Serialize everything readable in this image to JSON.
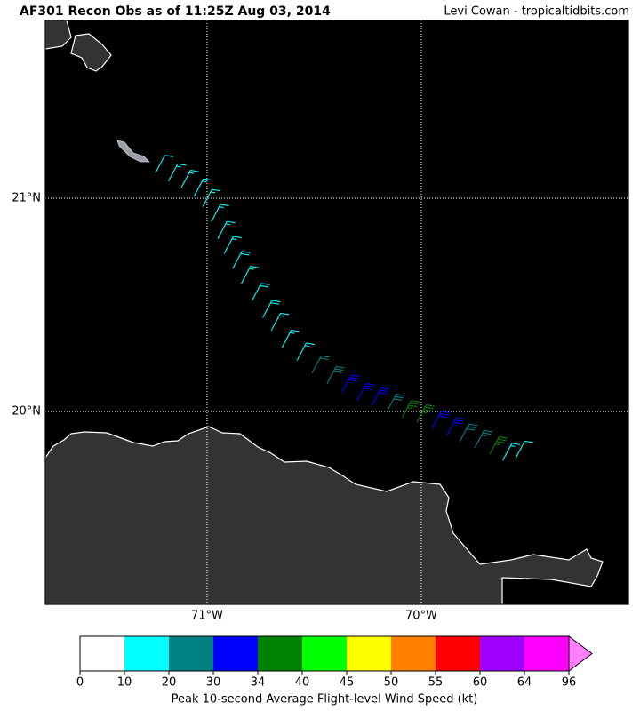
{
  "header": {
    "title": "AF301 Recon Obs as of 11:25Z Aug 03, 2014",
    "credit": "Levi Cowan - tropicaltidbits.com"
  },
  "map": {
    "lon_range": [
      -71.755,
      -69.033
    ],
    "lat_range": [
      19.096,
      21.833
    ],
    "lat_ticks": [
      {
        "value": 21,
        "label": "21°N"
      },
      {
        "value": 20,
        "label": "20°N"
      }
    ],
    "lon_ticks": [
      {
        "value": -71,
        "label": "71°W"
      },
      {
        "value": -70,
        "label": "70°W"
      }
    ],
    "observations": [
      {
        "lon": -71.24,
        "lat": 21.12,
        "speed": 12
      },
      {
        "lon": -71.18,
        "lat": 21.08,
        "speed": 15
      },
      {
        "lon": -71.12,
        "lat": 21.05,
        "speed": 15
      },
      {
        "lon": -71.06,
        "lat": 21.01,
        "speed": 14
      },
      {
        "lon": -71.02,
        "lat": 20.96,
        "speed": 13
      },
      {
        "lon": -70.98,
        "lat": 20.89,
        "speed": 14
      },
      {
        "lon": -70.95,
        "lat": 20.81,
        "speed": 16
      },
      {
        "lon": -70.92,
        "lat": 20.74,
        "speed": 17
      },
      {
        "lon": -70.88,
        "lat": 20.67,
        "speed": 18
      },
      {
        "lon": -70.84,
        "lat": 20.6,
        "speed": 17
      },
      {
        "lon": -70.79,
        "lat": 20.52,
        "speed": 18
      },
      {
        "lon": -70.74,
        "lat": 20.44,
        "speed": 19
      },
      {
        "lon": -70.7,
        "lat": 20.38,
        "speed": 16
      },
      {
        "lon": -70.65,
        "lat": 20.3,
        "speed": 14
      },
      {
        "lon": -70.58,
        "lat": 20.24,
        "speed": 15
      },
      {
        "lon": -70.51,
        "lat": 20.18,
        "speed": 22
      },
      {
        "lon": -70.44,
        "lat": 20.13,
        "speed": 28
      },
      {
        "lon": -70.37,
        "lat": 20.09,
        "speed": 31
      },
      {
        "lon": -70.3,
        "lat": 20.05,
        "speed": 32
      },
      {
        "lon": -70.23,
        "lat": 20.03,
        "speed": 31
      },
      {
        "lon": -70.16,
        "lat": 20.0,
        "speed": 29
      },
      {
        "lon": -70.09,
        "lat": 19.97,
        "speed": 36
      },
      {
        "lon": -70.02,
        "lat": 19.95,
        "speed": 35
      },
      {
        "lon": -69.95,
        "lat": 19.92,
        "speed": 32
      },
      {
        "lon": -69.88,
        "lat": 19.89,
        "speed": 31
      },
      {
        "lon": -69.82,
        "lat": 19.86,
        "speed": 29
      },
      {
        "lon": -69.75,
        "lat": 19.83,
        "speed": 24
      },
      {
        "lon": -69.68,
        "lat": 19.8,
        "speed": 36
      },
      {
        "lon": -69.62,
        "lat": 19.77,
        "speed": 14
      },
      {
        "lon": -69.56,
        "lat": 19.78,
        "speed": 12
      }
    ]
  },
  "colorbar": {
    "bounds": [
      0,
      10,
      20,
      30,
      34,
      40,
      45,
      50,
      55,
      60,
      64,
      96
    ],
    "colors": [
      "#ffffff",
      "#00ffff",
      "#008080",
      "#0000ff",
      "#008000",
      "#00ff00",
      "#ffff00",
      "#ff8000",
      "#ff0000",
      "#a000ff",
      "#ff00ff"
    ],
    "extend_color": "#ff80ff",
    "label": "Peak 10-second Average Flight-level Wind Speed (kt)"
  }
}
